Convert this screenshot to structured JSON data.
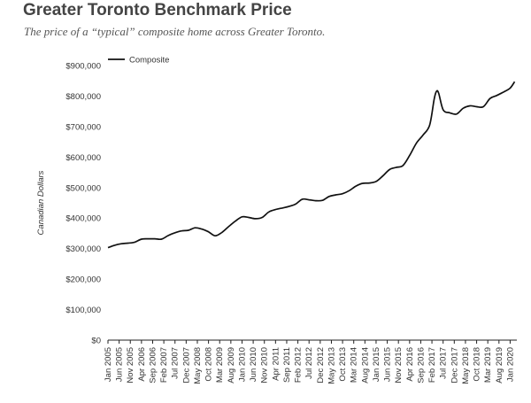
{
  "header": {
    "title": "Greater Toronto Benchmark Price",
    "subtitle": "The price of a “typical” composite home across Greater Toronto."
  },
  "chart_data": {
    "type": "line",
    "title": "",
    "xlabel": "",
    "ylabel": "Canadian Dollars",
    "ylim": [
      0,
      900000
    ],
    "yticks": [
      0,
      100000,
      200000,
      300000,
      400000,
      500000,
      600000,
      700000,
      800000,
      900000
    ],
    "ytick_labels": [
      "$0",
      "$100,000",
      "$200,000",
      "$300,000",
      "$400,000",
      "$500,000",
      "$600,000",
      "$700,000",
      "$800,000",
      "$900,000"
    ],
    "xlim": [
      "2005-01",
      "2020-04"
    ],
    "xtick_labels": [
      "Jan 2005",
      "Jun 2005",
      "Nov 2005",
      "Apr 2006",
      "Sep 2006",
      "Feb 2007",
      "Jul 2007",
      "Dec 2007",
      "May 2008",
      "Oct 2008",
      "Mar 2009",
      "Aug 2009",
      "Jan 2010",
      "Jun 2010",
      "Nov 2010",
      "Apr 2011",
      "Sep 2011",
      "Feb 2012",
      "Jul 2012",
      "Dec 2012",
      "May 2013",
      "Oct 2013",
      "Mar 2014",
      "Aug 2014",
      "Jan 2015",
      "Jun 2015",
      "Nov 2015",
      "Apr 2016",
      "Sep 2016",
      "Feb 2017",
      "Jul 2017",
      "Dec 2017",
      "May 2018",
      "Oct 2018",
      "Mar 2019",
      "Aug 2019",
      "Jan 2020"
    ],
    "grid": false,
    "legend_position": "top-left",
    "series": [
      {
        "name": "Composite",
        "color": "#111111",
        "points": [
          [
            "2005-01",
            303000
          ],
          [
            "2005-04",
            311000
          ],
          [
            "2005-07",
            316000
          ],
          [
            "2005-10",
            318000
          ],
          [
            "2006-01",
            321000
          ],
          [
            "2006-04",
            331000
          ],
          [
            "2006-07",
            332000
          ],
          [
            "2006-10",
            332000
          ],
          [
            "2007-01",
            331000
          ],
          [
            "2007-04",
            343000
          ],
          [
            "2007-07",
            352000
          ],
          [
            "2007-10",
            358000
          ],
          [
            "2008-01",
            360000
          ],
          [
            "2008-04",
            368000
          ],
          [
            "2008-07",
            364000
          ],
          [
            "2008-10",
            355000
          ],
          [
            "2009-01",
            342000
          ],
          [
            "2009-04",
            353000
          ],
          [
            "2009-07",
            372000
          ],
          [
            "2009-10",
            390000
          ],
          [
            "2010-01",
            404000
          ],
          [
            "2010-04",
            402000
          ],
          [
            "2010-07",
            398000
          ],
          [
            "2010-10",
            402000
          ],
          [
            "2011-01",
            420000
          ],
          [
            "2011-04",
            428000
          ],
          [
            "2011-07",
            433000
          ],
          [
            "2011-10",
            438000
          ],
          [
            "2012-01",
            446000
          ],
          [
            "2012-04",
            462000
          ],
          [
            "2012-07",
            460000
          ],
          [
            "2012-10",
            457000
          ],
          [
            "2013-01",
            458000
          ],
          [
            "2013-04",
            471000
          ],
          [
            "2013-07",
            476000
          ],
          [
            "2013-10",
            480000
          ],
          [
            "2014-01",
            490000
          ],
          [
            "2014-04",
            505000
          ],
          [
            "2014-07",
            514000
          ],
          [
            "2014-10",
            515000
          ],
          [
            "2015-01",
            520000
          ],
          [
            "2015-04",
            538000
          ],
          [
            "2015-07",
            559000
          ],
          [
            "2015-10",
            566000
          ],
          [
            "2016-01",
            572000
          ],
          [
            "2016-04",
            605000
          ],
          [
            "2016-07",
            645000
          ],
          [
            "2016-10",
            672000
          ],
          [
            "2017-01",
            705000
          ],
          [
            "2017-03",
            790000
          ],
          [
            "2017-04",
            815000
          ],
          [
            "2017-05",
            810000
          ],
          [
            "2017-07",
            755000
          ],
          [
            "2017-10",
            745000
          ],
          [
            "2018-01",
            741000
          ],
          [
            "2018-04",
            760000
          ],
          [
            "2018-07",
            768000
          ],
          [
            "2018-10",
            765000
          ],
          [
            "2019-01",
            765000
          ],
          [
            "2019-04",
            792000
          ],
          [
            "2019-07",
            802000
          ],
          [
            "2019-10",
            813000
          ],
          [
            "2020-01",
            826000
          ],
          [
            "2020-03",
            847000
          ]
        ]
      }
    ]
  }
}
